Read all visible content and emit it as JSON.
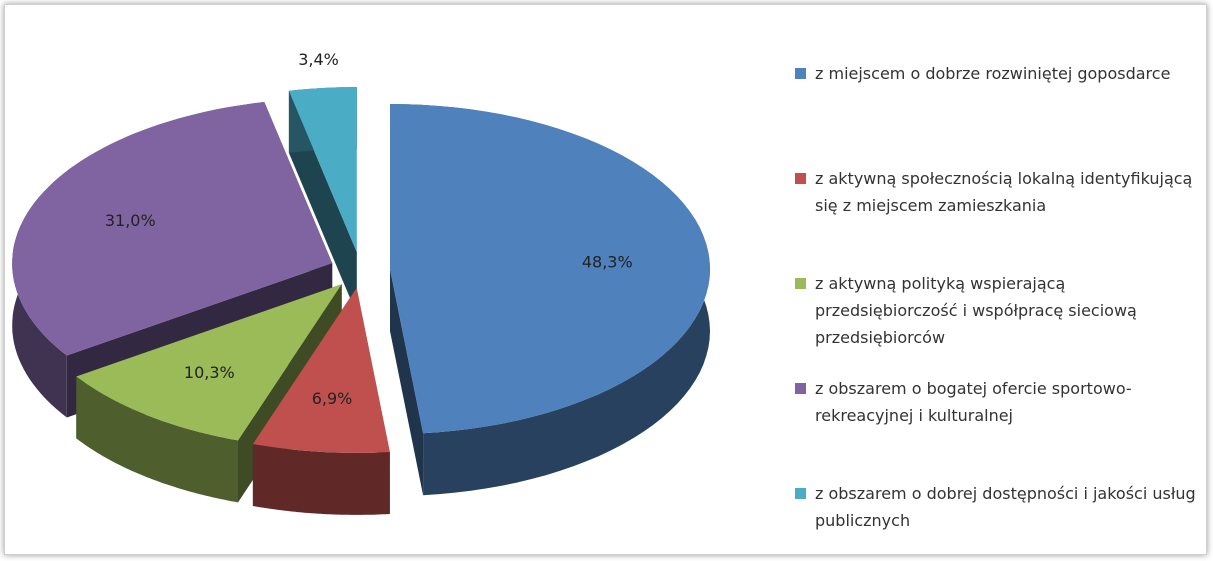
{
  "chart_data": {
    "type": "pie",
    "categories": [
      "z miejscem o dobrze rozwiniętej goposdarce",
      "z aktywną społecznością lokalną identyfikującą się z miejscem zamieszkania",
      "z aktywną polityką wspierającą przedsiębiorczość i współpracę sieciową przedsiębiorców",
      "z obszarem o bogatej ofercie sportowo-rekreacyjnej i kulturalnej",
      "z obszarem o dobrej dostępności i jakości usług publicznych"
    ],
    "values": [
      48.3,
      6.9,
      10.3,
      31.0,
      3.4
    ],
    "value_labels": [
      "48,3%",
      "6,9%",
      "10,3%",
      "31,0%",
      "3,4%"
    ],
    "colors": [
      "#4f81bd",
      "#c0504d",
      "#9bbb59",
      "#8064a2",
      "#4bacc6"
    ],
    "legend": "right"
  }
}
